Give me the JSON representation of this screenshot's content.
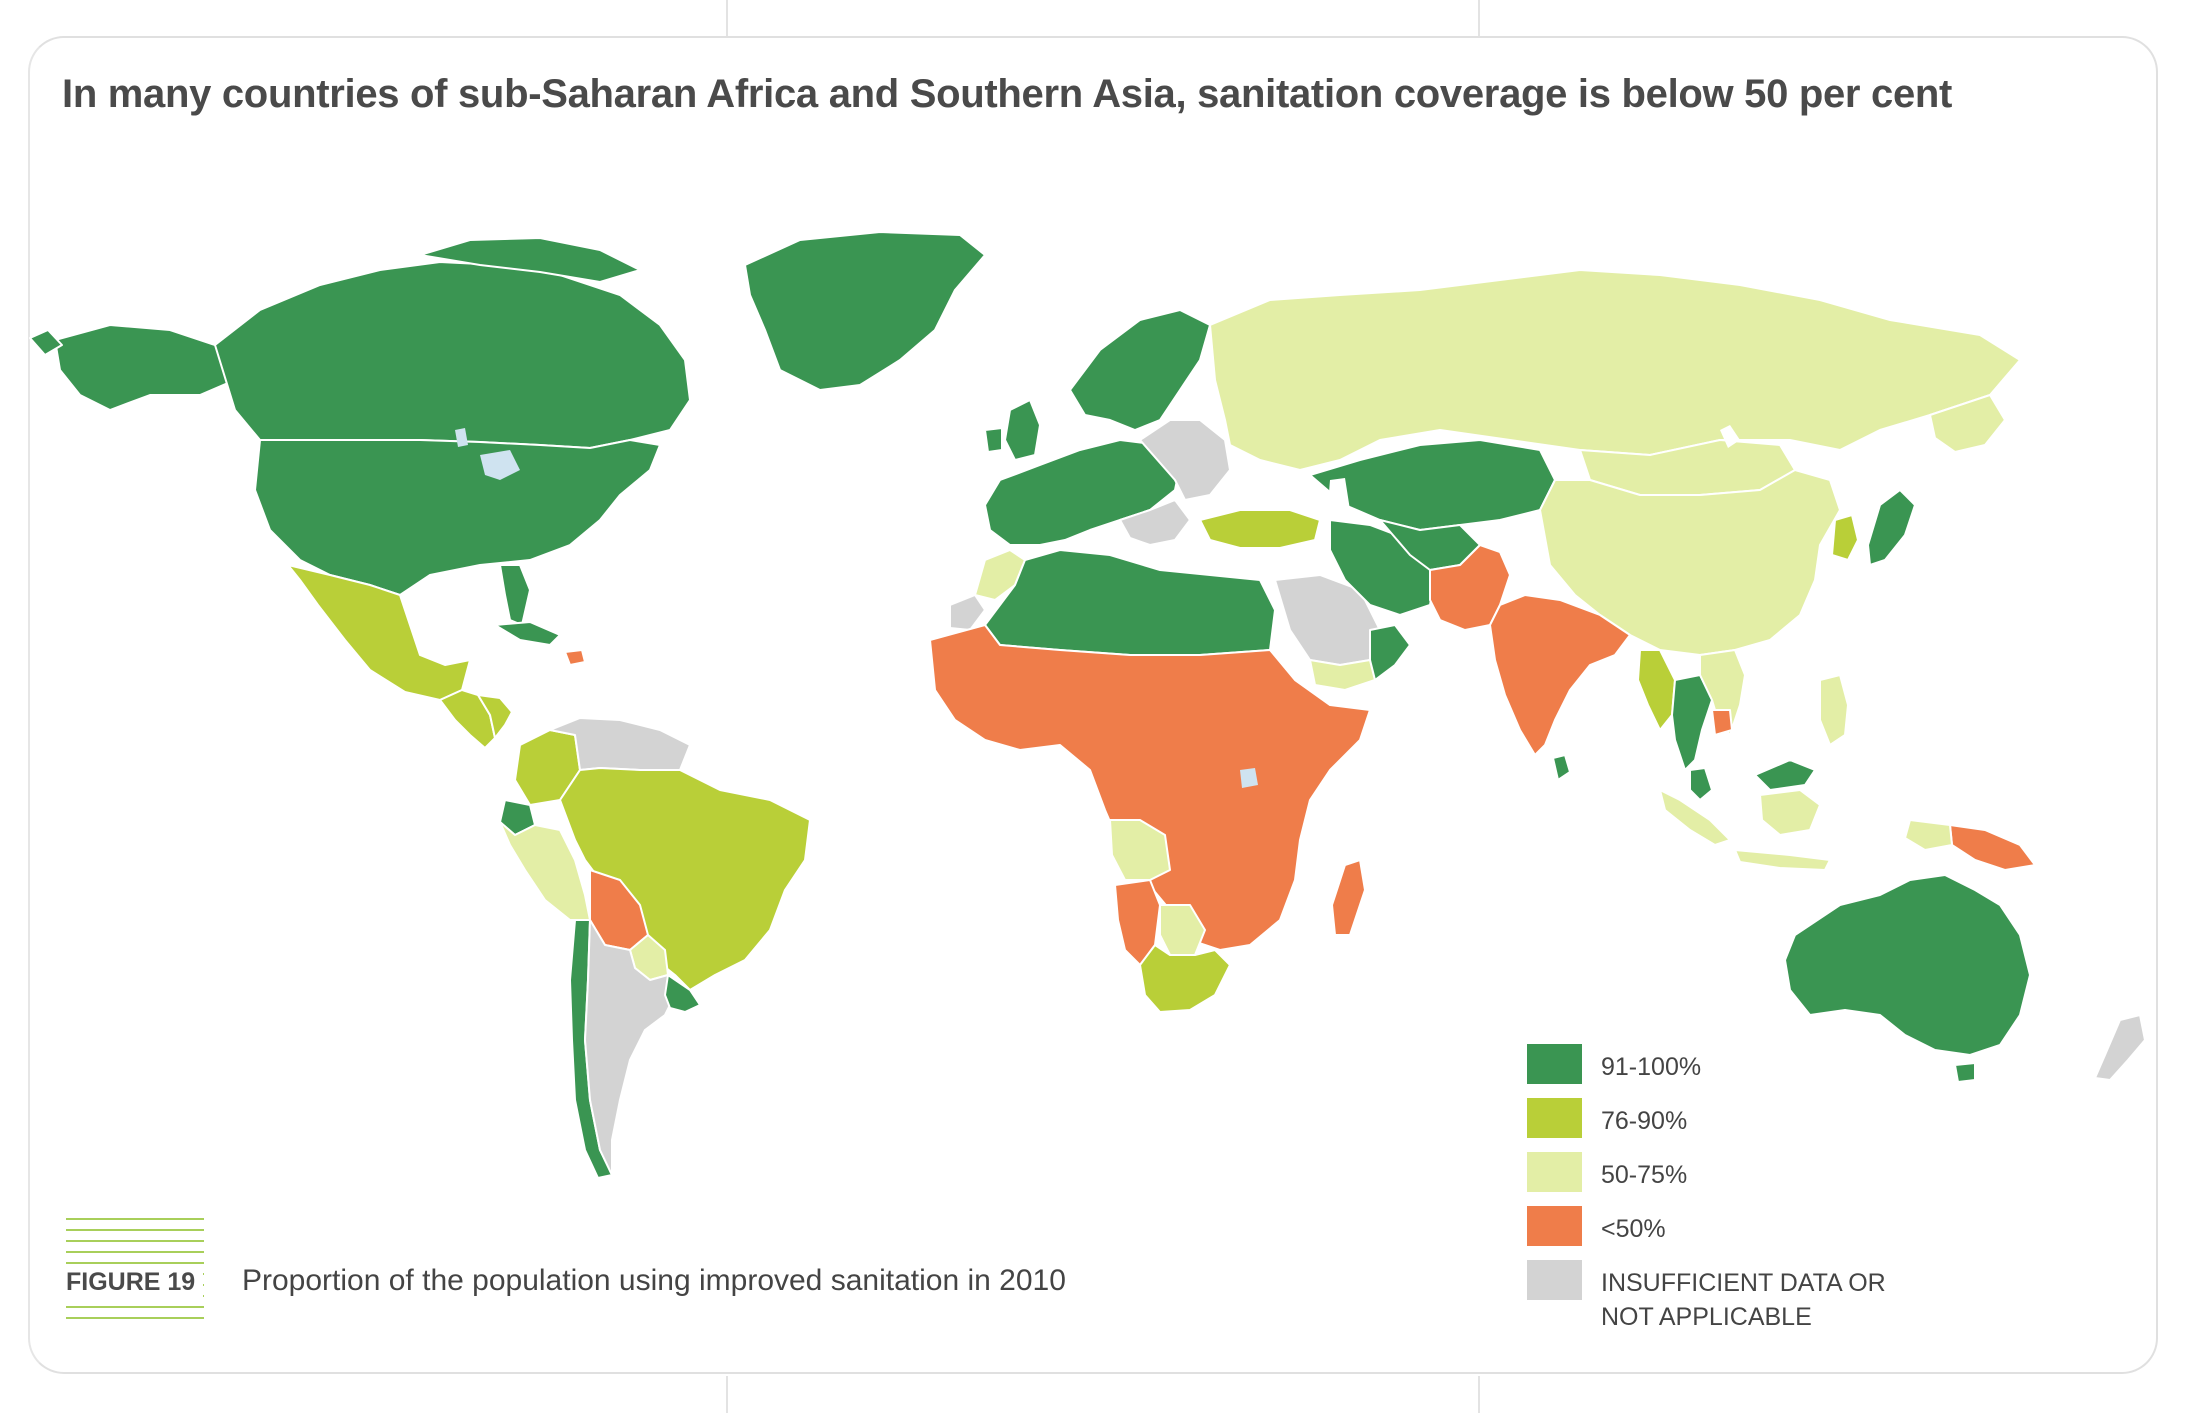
{
  "title": "In many countries of sub-Saharan Africa and Southern Asia, sanitation coverage is below 50 per cent",
  "figure": {
    "label": "FIGURE 19",
    "caption": "Proportion of the population using improved sanitation in 2010"
  },
  "legend": [
    {
      "id": "cat-91-100",
      "label": "91-100%",
      "color": "#3a9552"
    },
    {
      "id": "cat-76-90",
      "label": "76-90%",
      "color": "#b9cf38"
    },
    {
      "id": "cat-50-75",
      "label": "50-75%",
      "color": "#e3eea6"
    },
    {
      "id": "cat-lt-50",
      "label": "<50%",
      "color": "#ef7d4a"
    },
    {
      "id": "cat-na",
      "label": "INSUFFICIENT DATA OR NOT APPLICABLE",
      "color": "#d3d3d3"
    }
  ],
  "colors": {
    "water": "#cfe3f0",
    "border": "#ffffff",
    "coast": "#777777"
  },
  "regions": [
    {
      "name": "greenland",
      "category": "cat-91-100"
    },
    {
      "name": "alaska",
      "category": "cat-91-100"
    },
    {
      "name": "canada",
      "category": "cat-91-100"
    },
    {
      "name": "united-states",
      "category": "cat-91-100"
    },
    {
      "name": "mexico",
      "category": "cat-76-90"
    },
    {
      "name": "central-america",
      "category": "cat-76-90"
    },
    {
      "name": "cuba",
      "category": "cat-91-100"
    },
    {
      "name": "haiti",
      "category": "cat-lt-50"
    },
    {
      "name": "venezuela",
      "category": "cat-na"
    },
    {
      "name": "colombia",
      "category": "cat-76-90"
    },
    {
      "name": "ecuador",
      "category": "cat-91-100"
    },
    {
      "name": "peru",
      "category": "cat-50-75"
    },
    {
      "name": "brazil",
      "category": "cat-76-90"
    },
    {
      "name": "bolivia",
      "category": "cat-lt-50"
    },
    {
      "name": "paraguay",
      "category": "cat-50-75"
    },
    {
      "name": "chile",
      "category": "cat-91-100"
    },
    {
      "name": "argentina",
      "category": "cat-na"
    },
    {
      "name": "uruguay",
      "category": "cat-91-100"
    },
    {
      "name": "western-europe",
      "category": "cat-91-100"
    },
    {
      "name": "scandinavia",
      "category": "cat-91-100"
    },
    {
      "name": "eastern-europe",
      "category": "cat-na"
    },
    {
      "name": "turkey",
      "category": "cat-76-90"
    },
    {
      "name": "north-africa",
      "category": "cat-91-100"
    },
    {
      "name": "western-sahara",
      "category": "cat-na"
    },
    {
      "name": "morocco",
      "category": "cat-50-75"
    },
    {
      "name": "saudi-arabia",
      "category": "cat-na"
    },
    {
      "name": "yemen",
      "category": "cat-50-75"
    },
    {
      "name": "oman",
      "category": "cat-91-100"
    },
    {
      "name": "sub-saharan-africa",
      "category": "cat-lt-50"
    },
    {
      "name": "angola",
      "category": "cat-50-75"
    },
    {
      "name": "namibia",
      "category": "cat-lt-50"
    },
    {
      "name": "botswana",
      "category": "cat-50-75"
    },
    {
      "name": "south-africa",
      "category": "cat-76-90"
    },
    {
      "name": "madagascar",
      "category": "cat-lt-50"
    },
    {
      "name": "russia",
      "category": "cat-50-75"
    },
    {
      "name": "kazakhstan",
      "category": "cat-91-100"
    },
    {
      "name": "iran",
      "category": "cat-91-100"
    },
    {
      "name": "afghanistan-pakistan",
      "category": "cat-lt-50"
    },
    {
      "name": "india",
      "category": "cat-lt-50"
    },
    {
      "name": "sri-lanka",
      "category": "cat-91-100"
    },
    {
      "name": "china",
      "category": "cat-50-75"
    },
    {
      "name": "mongolia",
      "category": "cat-50-75"
    },
    {
      "name": "korea",
      "category": "cat-76-90"
    },
    {
      "name": "japan",
      "category": "cat-91-100"
    },
    {
      "name": "myanmar",
      "category": "cat-76-90"
    },
    {
      "name": "thailand",
      "category": "cat-91-100"
    },
    {
      "name": "cambodia",
      "category": "cat-lt-50"
    },
    {
      "name": "vietnam",
      "category": "cat-50-75"
    },
    {
      "name": "malaysia",
      "category": "cat-91-100"
    },
    {
      "name": "indonesia",
      "category": "cat-50-75"
    },
    {
      "name": "philippines",
      "category": "cat-50-75"
    },
    {
      "name": "papua-new-guinea",
      "category": "cat-lt-50"
    },
    {
      "name": "australia",
      "category": "cat-91-100"
    },
    {
      "name": "new-zealand",
      "category": "cat-na"
    }
  ]
}
